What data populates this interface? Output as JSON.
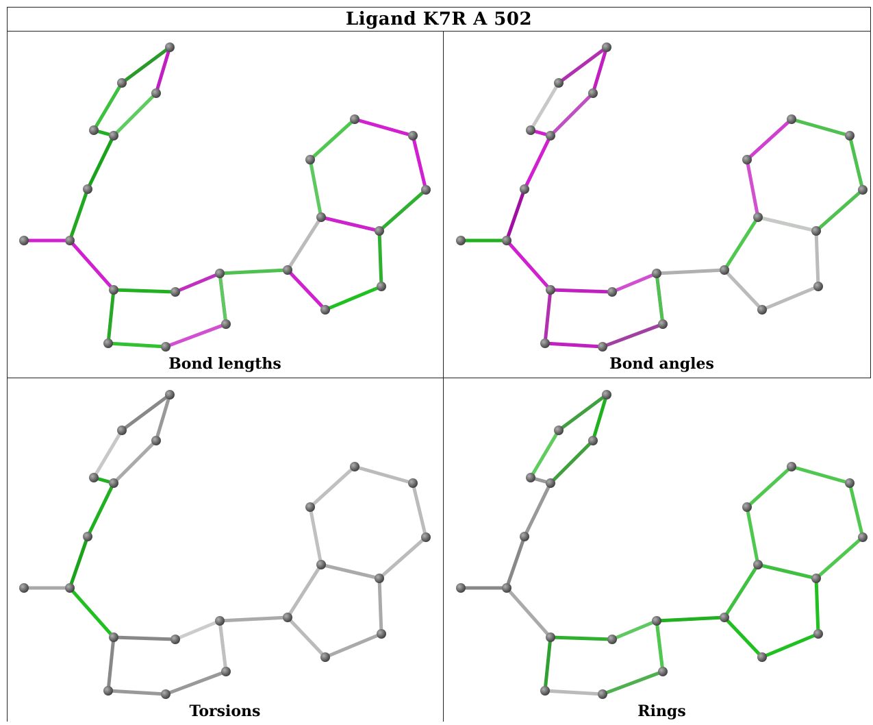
{
  "title": "Ligand K7R A 502",
  "panels": [
    {
      "id": "lengths",
      "caption": "Bond lengths",
      "bonds": [
        "#2a9a2a",
        "#40c040",
        "#c020c0",
        "#60cc60",
        "#20b020",
        "#1aa31a",
        "#20a820",
        "#d020d0",
        "#d020d0",
        "#20b020",
        "#28a828",
        "#c030c0",
        "#d040d0",
        "#50c050",
        "#d050d0",
        "#30c030",
        "#bbbbbb",
        "#d020d0",
        "#20c020",
        "#30b030",
        "#20c020",
        "#60c860",
        "#50c850",
        "#d020d0",
        "#d020d0",
        "#30b030",
        "#60c860",
        "#d020d0"
      ]
    },
    {
      "id": "angles",
      "caption": "Bond angles",
      "bonds": [
        "#b030b0",
        "#c8c8c8",
        "#c020c0",
        "#c050c0",
        "#d020d0",
        "#d020d0",
        "#a010a0",
        "#20b020",
        "#d020d0",
        "#c020c0",
        "#b030b0",
        "#d050d0",
        "#d050d0",
        "#b0b0b0",
        "#a040a0",
        "#c020c0",
        "#50c850",
        "#bbbbbb",
        "#bbbbbb",
        "#bbbbbb",
        "#50c050",
        "#d050d0",
        "#d040d0",
        "#50c050",
        "#50c050",
        "#50c050",
        "#50c050",
        "#c8c8c8"
      ]
    },
    {
      "id": "torsions",
      "caption": "Torsions",
      "bonds": [
        "#888888",
        "#c8c8c8",
        "#999999",
        "#aaaaaa",
        "#20b020",
        "#20b020",
        "#1aa31a",
        "#a8a8a8",
        "#20c020",
        "#888888",
        "#888888",
        "#cccccc",
        "#cccccc",
        "#aaaaaa",
        "#999999",
        "#999999",
        "#bbbbbb",
        "#bbbbbb",
        "#aaaaaa",
        "#aaaaaa",
        "#bbbbbb",
        "#c0c0c0",
        "#c0c0c0",
        "#bbbbbb",
        "#bbbbbb",
        "#bbbbbb",
        "#c0c0c0",
        "#aaaaaa"
      ]
    },
    {
      "id": "rings",
      "caption": "Rings",
      "bonds": [
        "#40a040",
        "#60cc60",
        "#20b020",
        "#40a040",
        "#999999",
        "#999999",
        "#888888",
        "#888888",
        "#aaaaaa",
        "#30b030",
        "#30a030",
        "#60c860",
        "#60c860",
        "#20b020",
        "#50b050",
        "#bbbbbb",
        "#40c040",
        "#20c020",
        "#20c020",
        "#20c020",
        "#40c040",
        "#50c850",
        "#50c850",
        "#50c850",
        "#50c850",
        "#50c850",
        "#50c850",
        "#40c040"
      ]
    }
  ]
}
